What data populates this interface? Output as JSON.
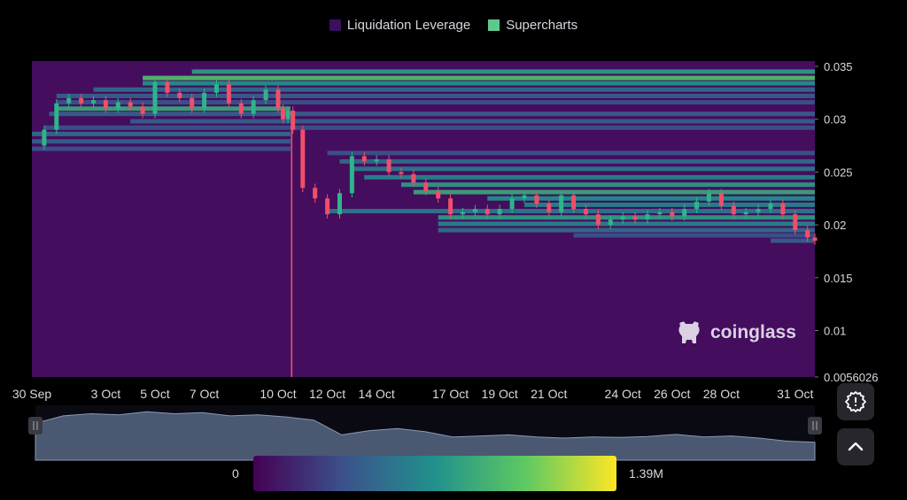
{
  "legend": {
    "items": [
      {
        "label": "Liquidation Leverage",
        "color": "#3b0f5c"
      },
      {
        "label": "Supercharts",
        "color": "#5ec98f"
      }
    ]
  },
  "watermark": {
    "text": "coinglass",
    "icon": "coinglass-logo-icon"
  },
  "colorbar": {
    "min_label": "0",
    "max_label": "1.39M",
    "min_value": 0,
    "max_value": 1390000,
    "colors": [
      "#440154",
      "#3b528b",
      "#21918c",
      "#5ec962",
      "#fde725"
    ]
  },
  "buttons": {
    "settings_icon": "gear-icon",
    "collapse_icon": "chevron-up-icon"
  },
  "colors": {
    "background": "#000000",
    "heatmap_base": "#440d5e",
    "candle_up": "#2fb48c",
    "candle_down": "#ef4f6a",
    "navigator_fill": "#4a5872",
    "navigator_line": "#8a99b8"
  },
  "chart_data": {
    "type": "heatmap",
    "title": "",
    "legend_position": "top-center",
    "legend": [
      "Liquidation Leverage",
      "Supercharts"
    ],
    "y_axis": {
      "position": "right",
      "ylim": [
        0.0056026,
        0.0355
      ],
      "tick_labels": [
        "0.035",
        "0.03",
        "0.025",
        "0.02",
        "0.015",
        "0.01",
        "0.0056026"
      ],
      "tick_values": [
        0.035,
        0.03,
        0.025,
        0.02,
        0.015,
        0.01,
        0.0056026
      ]
    },
    "x_axis": {
      "tick_labels": [
        "30 Sep",
        "3 Oct",
        "5 Oct",
        "7 Oct",
        "10 Oct",
        "12 Oct",
        "14 Oct",
        "17 Oct",
        "19 Oct",
        "21 Oct",
        "24 Oct",
        "26 Oct",
        "28 Oct",
        "31 Oct"
      ],
      "range_days": [
        0,
        31.8
      ]
    },
    "price_series": {
      "name": "price",
      "x_days": [
        0,
        0.5,
        1,
        1.5,
        2,
        2.5,
        3,
        3.5,
        4,
        4.5,
        5,
        5.5,
        6,
        6.5,
        7,
        7.5,
        8,
        8.5,
        9,
        9.5,
        10,
        10.2,
        10.4,
        10.6,
        11,
        11.5,
        12,
        12.5,
        13,
        13.5,
        14,
        14.5,
        15,
        15.5,
        16,
        16.5,
        17,
        17.5,
        18,
        18.5,
        19,
        19.5,
        20,
        20.5,
        21,
        21.5,
        22,
        22.5,
        23,
        23.5,
        24,
        24.5,
        25,
        25.5,
        26,
        26.5,
        27,
        27.5,
        28,
        28.5,
        29,
        29.5,
        30,
        30.5,
        31,
        31.5,
        31.8
      ],
      "values": [
        0.0275,
        0.029,
        0.0315,
        0.032,
        0.0315,
        0.0318,
        0.031,
        0.0316,
        0.0312,
        0.0305,
        0.0335,
        0.0325,
        0.032,
        0.031,
        0.0325,
        0.0333,
        0.0315,
        0.0305,
        0.0318,
        0.0328,
        0.031,
        0.03,
        0.0308,
        0.029,
        0.0235,
        0.0225,
        0.021,
        0.023,
        0.0265,
        0.026,
        0.0262,
        0.025,
        0.0248,
        0.024,
        0.0232,
        0.0225,
        0.021,
        0.0212,
        0.0215,
        0.021,
        0.0215,
        0.0225,
        0.0228,
        0.022,
        0.0212,
        0.0228,
        0.0215,
        0.021,
        0.02,
        0.0205,
        0.0208,
        0.0205,
        0.021,
        0.0212,
        0.0208,
        0.0215,
        0.0222,
        0.023,
        0.0218,
        0.021,
        0.0212,
        0.0215,
        0.022,
        0.021,
        0.0195,
        0.0188,
        0.0185
      ],
      "spike_low": {
        "x_day": 10.55,
        "value": 0.0056
      }
    },
    "liquidation_bands": [
      {
        "value": 0.0345,
        "x_start": 6.5,
        "x_end": 31.8,
        "intensity": 0.55
      },
      {
        "value": 0.0339,
        "x_start": 4.5,
        "x_end": 31.8,
        "intensity": 0.7
      },
      {
        "value": 0.0334,
        "x_start": 4.5,
        "x_end": 31.8,
        "intensity": 0.5
      },
      {
        "value": 0.0328,
        "x_start": 2.5,
        "x_end": 31.8,
        "intensity": 0.35
      },
      {
        "value": 0.0322,
        "x_start": 1,
        "x_end": 31.8,
        "intensity": 0.3
      },
      {
        "value": 0.0316,
        "x_start": 1,
        "x_end": 31.8,
        "intensity": 0.25
      },
      {
        "value": 0.031,
        "x_start": 1,
        "x_end": 10.5,
        "intensity": 0.6
      },
      {
        "value": 0.0305,
        "x_start": 0.7,
        "x_end": 31.8,
        "intensity": 0.3
      },
      {
        "value": 0.0298,
        "x_start": 4,
        "x_end": 31.8,
        "intensity": 0.3
      },
      {
        "value": 0.0292,
        "x_start": 0.5,
        "x_end": 31.8,
        "intensity": 0.25
      },
      {
        "value": 0.0286,
        "x_start": 0,
        "x_end": 10.5,
        "intensity": 0.35
      },
      {
        "value": 0.0279,
        "x_start": 0,
        "x_end": 10.5,
        "intensity": 0.3
      },
      {
        "value": 0.0272,
        "x_start": 0,
        "x_end": 10.5,
        "intensity": 0.25
      },
      {
        "value": 0.0268,
        "x_start": 12,
        "x_end": 31.8,
        "intensity": 0.25
      },
      {
        "value": 0.026,
        "x_start": 12.5,
        "x_end": 31.8,
        "intensity": 0.35
      },
      {
        "value": 0.0253,
        "x_start": 13,
        "x_end": 31.8,
        "intensity": 0.4
      },
      {
        "value": 0.0245,
        "x_start": 13.5,
        "x_end": 31.8,
        "intensity": 0.45
      },
      {
        "value": 0.0238,
        "x_start": 15,
        "x_end": 31.8,
        "intensity": 0.55
      },
      {
        "value": 0.0231,
        "x_start": 15.5,
        "x_end": 31.8,
        "intensity": 0.6
      },
      {
        "value": 0.0225,
        "x_start": 18.5,
        "x_end": 31.8,
        "intensity": 0.5
      },
      {
        "value": 0.0219,
        "x_start": 20,
        "x_end": 31.8,
        "intensity": 0.45
      },
      {
        "value": 0.0213,
        "x_start": 12,
        "x_end": 31.8,
        "intensity": 0.4
      },
      {
        "value": 0.0207,
        "x_start": 16.5,
        "x_end": 31.8,
        "intensity": 0.55
      },
      {
        "value": 0.0201,
        "x_start": 16.5,
        "x_end": 31.8,
        "intensity": 0.45
      },
      {
        "value": 0.0195,
        "x_start": 16.5,
        "x_end": 31.8,
        "intensity": 0.35
      },
      {
        "value": 0.019,
        "x_start": 22,
        "x_end": 31.8,
        "intensity": 0.25
      },
      {
        "value": 0.0185,
        "x_start": 30,
        "x_end": 31.8,
        "intensity": 0.3
      }
    ],
    "navigator": {
      "type": "area",
      "values": [
        0.0275,
        0.031,
        0.032,
        0.0315,
        0.033,
        0.032,
        0.0325,
        0.031,
        0.0315,
        0.0305,
        0.029,
        0.022,
        0.024,
        0.025,
        0.0235,
        0.021,
        0.0215,
        0.022,
        0.021,
        0.0205,
        0.021,
        0.0208,
        0.0212,
        0.0222,
        0.021,
        0.0215,
        0.0205,
        0.019,
        0.0185
      ]
    }
  }
}
